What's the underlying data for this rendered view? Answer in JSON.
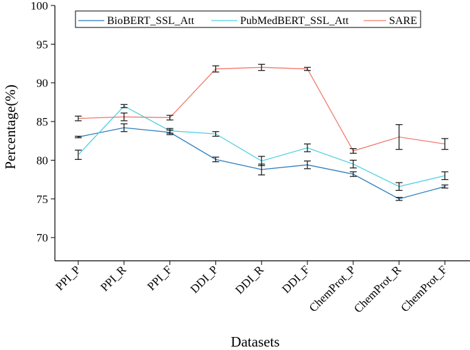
{
  "chart_data": {
    "type": "line",
    "title": "",
    "xlabel": "Datasets",
    "ylabel": "Percentage(%)",
    "ylim": [
      67,
      100
    ],
    "yticks": [
      70,
      75,
      80,
      85,
      90,
      95,
      100
    ],
    "categories": [
      "PPI_P",
      "PPI_R",
      "PPI_F",
      "DDI_P",
      "DDI_R",
      "DDI_F",
      "ChemProt_P",
      "ChemProt_R",
      "ChemProt_F"
    ],
    "legend_position": "top",
    "series": [
      {
        "name": "BioBERT_SSL_Att",
        "color": "#2b7bbd",
        "values": [
          83.0,
          84.2,
          83.6,
          80.1,
          78.8,
          79.4,
          78.2,
          75.0,
          76.6
        ],
        "errors": [
          0.1,
          0.5,
          0.3,
          0.3,
          0.7,
          0.5,
          0.3,
          0.2,
          0.2
        ]
      },
      {
        "name": "PubMedBERT_SSL_Att",
        "color": "#4fd0e0",
        "values": [
          80.7,
          87.0,
          83.8,
          83.4,
          79.9,
          81.6,
          79.5,
          76.6,
          78.0
        ],
        "errors": [
          0.6,
          0.2,
          0.3,
          0.3,
          0.6,
          0.5,
          0.5,
          0.5,
          0.5
        ]
      },
      {
        "name": "SARE",
        "color": "#f07a6e",
        "values": [
          85.4,
          85.6,
          85.5,
          91.8,
          92.0,
          91.8,
          81.2,
          83.0,
          82.1
        ],
        "errors": [
          0.3,
          0.5,
          0.3,
          0.4,
          0.4,
          0.2,
          0.3,
          1.6,
          0.7
        ]
      }
    ]
  }
}
